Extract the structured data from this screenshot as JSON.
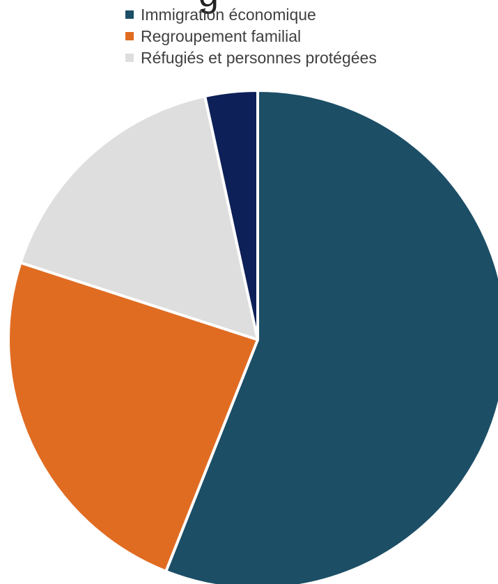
{
  "chart_data": {
    "type": "pie",
    "title": "",
    "title_fragment": "g",
    "legend_position": "top",
    "series": [
      {
        "name": "Immigration économique",
        "value": 56.0,
        "color": "#1c4e66"
      },
      {
        "name": "Regroupement familial",
        "value": 24.0,
        "color": "#e06c22"
      },
      {
        "name": "Réfugiés et personnes protégées",
        "value": 16.6,
        "color": "#dedede"
      },
      {
        "name": "",
        "value": 3.4,
        "color": "#0e2058"
      }
    ]
  }
}
